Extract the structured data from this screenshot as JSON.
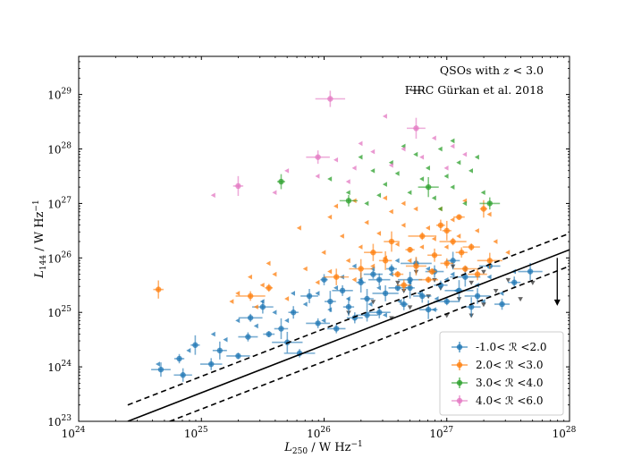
{
  "chart_data": {
    "type": "scatter",
    "title": "",
    "annotation": "QSOs with z < 3.0",
    "xlabel": "L250 / W Hz−1",
    "ylabel": "L144 / W Hz−1",
    "xlim_log10": [
      24,
      28
    ],
    "ylim_log10": [
      23,
      29.7
    ],
    "x_tick_labels": [
      "10^24",
      "10^25",
      "10^26",
      "10^27",
      "10^28"
    ],
    "y_tick_labels": [
      "10^23",
      "10^24",
      "10^25",
      "10^26",
      "10^27",
      "10^28",
      "10^29"
    ],
    "firc_relation": {
      "label": "FIRC Gürkan et al. 2018",
      "line_points_log10": [
        [
          24.4,
          23.0
        ],
        [
          28.0,
          26.15
        ]
      ],
      "offset_dex": 0.3
    },
    "upper_limit_arrow": {
      "x_log10": 27.9,
      "y_from_log10": 26.0,
      "y_to_log10": 25.12
    },
    "series": [
      {
        "name": "-1.0< ℛ <2.0",
        "color": "#1f77b4",
        "detections": [
          [
            24.67,
            23.95
          ],
          [
            24.82,
            24.15
          ],
          [
            24.85,
            23.85
          ],
          [
            24.95,
            24.4
          ],
          [
            25.08,
            24.05
          ],
          [
            25.15,
            24.3
          ],
          [
            25.3,
            24.2
          ],
          [
            25.38,
            24.55
          ],
          [
            25.4,
            24.9
          ],
          [
            25.5,
            25.1
          ],
          [
            25.55,
            24.6
          ],
          [
            25.7,
            24.45
          ],
          [
            25.75,
            25.0
          ],
          [
            25.8,
            24.25
          ],
          [
            25.88,
            25.3
          ],
          [
            25.95,
            24.8
          ],
          [
            26.05,
            25.2
          ],
          [
            26.1,
            24.7
          ],
          [
            26.15,
            25.4
          ],
          [
            26.2,
            25.1
          ],
          [
            26.25,
            24.9
          ],
          [
            26.3,
            25.55
          ],
          [
            26.35,
            25.25
          ],
          [
            26.4,
            25.7
          ],
          [
            26.45,
            25.0
          ],
          [
            26.5,
            25.35
          ],
          [
            26.55,
            25.8
          ],
          [
            26.6,
            25.45
          ],
          [
            26.65,
            25.15
          ],
          [
            26.7,
            25.6
          ],
          [
            26.75,
            25.9
          ],
          [
            26.8,
            25.3
          ],
          [
            26.85,
            25.05
          ],
          [
            26.9,
            25.75
          ],
          [
            26.95,
            25.5
          ],
          [
            27.0,
            25.2
          ],
          [
            27.05,
            25.95
          ],
          [
            27.1,
            25.4
          ],
          [
            27.15,
            25.65
          ],
          [
            27.25,
            25.3
          ],
          [
            27.35,
            25.85
          ],
          [
            27.45,
            25.15
          ],
          [
            27.55,
            25.55
          ],
          [
            27.68,
            25.75
          ],
          [
            25.65,
            24.7
          ],
          [
            26.0,
            25.6
          ],
          [
            26.45,
            25.6
          ],
          [
            26.7,
            25.45
          ],
          [
            27.2,
            25.1
          ],
          [
            26.35,
            24.95
          ]
        ],
        "limits": [
          [
            24.65,
            24.05
          ],
          [
            24.9,
            24.3
          ],
          [
            25.2,
            24.5
          ],
          [
            25.45,
            24.75
          ],
          [
            25.6,
            25.0
          ],
          [
            25.7,
            24.85
          ],
          [
            25.85,
            25.15
          ],
          [
            25.95,
            25.35
          ],
          [
            26.05,
            25.05
          ],
          [
            26.1,
            25.45
          ],
          [
            26.2,
            25.25
          ],
          [
            26.3,
            25.6
          ],
          [
            26.38,
            25.15
          ],
          [
            26.45,
            25.45
          ],
          [
            26.55,
            25.7
          ],
          [
            26.62,
            25.2
          ],
          [
            26.7,
            25.55
          ],
          [
            26.78,
            25.35
          ],
          [
            26.85,
            25.8
          ],
          [
            26.92,
            25.25
          ],
          [
            27.0,
            25.6
          ],
          [
            27.08,
            25.4
          ],
          [
            27.15,
            25.8
          ],
          [
            27.25,
            25.5
          ],
          [
            27.35,
            25.65
          ],
          [
            27.45,
            25.35
          ],
          [
            27.55,
            25.75
          ],
          [
            26.25,
            25.85
          ],
          [
            26.6,
            25.95
          ],
          [
            25.5,
            25.2
          ],
          [
            25.3,
            24.85
          ],
          [
            25.1,
            24.6
          ],
          [
            26.0,
            24.85
          ],
          [
            26.5,
            24.95
          ],
          [
            26.9,
            25.05
          ],
          [
            27.3,
            25.2
          ],
          [
            27.05,
            25.7
          ],
          [
            26.15,
            25.65
          ],
          [
            25.75,
            25.35
          ],
          [
            26.4,
            25.8
          ]
        ],
        "limits_down": [
          [
            26.4,
            25.2
          ],
          [
            26.55,
            24.9
          ],
          [
            26.7,
            25.1
          ],
          [
            26.85,
            25.3
          ],
          [
            27.0,
            24.95
          ],
          [
            27.1,
            25.25
          ],
          [
            27.2,
            24.95
          ],
          [
            27.3,
            25.15
          ],
          [
            27.4,
            25.4
          ],
          [
            27.6,
            25.25
          ],
          [
            26.95,
            25.45
          ],
          [
            26.65,
            25.4
          ],
          [
            27.5,
            25.6
          ],
          [
            26.2,
            25.0
          ],
          [
            27.7,
            25.55
          ]
        ]
      },
      {
        "name": "2.0< ℛ <3.0",
        "color": "#ff7f0e",
        "detections": [
          [
            24.65,
            25.42
          ],
          [
            25.4,
            25.3
          ],
          [
            25.55,
            25.45
          ],
          [
            26.1,
            25.65
          ],
          [
            26.3,
            25.8
          ],
          [
            26.5,
            25.95
          ],
          [
            26.6,
            25.7
          ],
          [
            26.7,
            26.15
          ],
          [
            26.75,
            25.85
          ],
          [
            26.8,
            26.4
          ],
          [
            26.85,
            25.6
          ],
          [
            26.9,
            26.05
          ],
          [
            26.95,
            26.6
          ],
          [
            27.0,
            25.9
          ],
          [
            27.05,
            26.3
          ],
          [
            27.1,
            26.75
          ],
          [
            27.15,
            25.8
          ],
          [
            27.2,
            26.2
          ],
          [
            27.25,
            25.7
          ],
          [
            27.3,
            26.9
          ],
          [
            26.4,
            26.1
          ],
          [
            26.55,
            26.3
          ],
          [
            27.35,
            25.95
          ],
          [
            26.65,
            25.5
          ],
          [
            27.0,
            26.5
          ],
          [
            26.88,
            25.75
          ],
          [
            27.12,
            26.1
          ]
        ],
        "limits": [
          [
            25.3,
            25.35
          ],
          [
            25.45,
            25.1
          ],
          [
            25.5,
            25.5
          ],
          [
            25.6,
            25.7
          ],
          [
            25.7,
            25.25
          ],
          [
            25.85,
            25.8
          ],
          [
            25.95,
            25.55
          ],
          [
            26.0,
            26.1
          ],
          [
            26.05,
            25.75
          ],
          [
            26.15,
            26.4
          ],
          [
            26.2,
            25.95
          ],
          [
            26.25,
            25.6
          ],
          [
            26.3,
            26.2
          ],
          [
            26.35,
            26.65
          ],
          [
            26.4,
            25.85
          ],
          [
            26.45,
            26.45
          ],
          [
            26.5,
            26.0
          ],
          [
            26.55,
            26.85
          ],
          [
            26.6,
            26.25
          ],
          [
            26.65,
            26.6
          ],
          [
            26.7,
            25.95
          ],
          [
            26.75,
            26.9
          ],
          [
            26.8,
            26.2
          ],
          [
            26.85,
            26.55
          ],
          [
            26.9,
            26.35
          ],
          [
            26.95,
            26.9
          ],
          [
            27.0,
            26.2
          ],
          [
            27.05,
            26.7
          ],
          [
            27.1,
            26.4
          ],
          [
            27.15,
            27.05
          ],
          [
            27.25,
            26.5
          ],
          [
            27.35,
            26.8
          ],
          [
            26.1,
            26.95
          ],
          [
            25.8,
            26.55
          ],
          [
            26.05,
            26.75
          ],
          [
            25.55,
            25.9
          ],
          [
            25.4,
            25.65
          ],
          [
            25.25,
            25.2
          ],
          [
            27.4,
            26.3
          ],
          [
            27.5,
            26.1
          ],
          [
            26.25,
            27.05
          ],
          [
            26.5,
            27.1
          ],
          [
            26.65,
            27.0
          ]
        ],
        "limits_down": [
          [
            26.6,
            25.55
          ],
          [
            26.75,
            25.75
          ],
          [
            26.9,
            25.6
          ],
          [
            27.05,
            25.85
          ],
          [
            27.2,
            25.55
          ],
          [
            27.3,
            25.75
          ]
        ]
      },
      {
        "name": "3.0< ℛ <4.0",
        "color": "#2ca02c",
        "detections": [
          [
            25.65,
            27.4
          ],
          [
            26.2,
            27.05
          ],
          [
            26.85,
            27.3
          ],
          [
            27.35,
            27.0
          ]
        ],
        "limits": [
          [
            26.05,
            27.45
          ],
          [
            26.2,
            27.2
          ],
          [
            26.35,
            27.0
          ],
          [
            26.5,
            27.35
          ],
          [
            26.55,
            27.75
          ],
          [
            26.6,
            27.55
          ],
          [
            26.7,
            27.2
          ],
          [
            26.75,
            27.9
          ],
          [
            26.8,
            27.45
          ],
          [
            26.85,
            27.65
          ],
          [
            26.9,
            27.1
          ],
          [
            26.95,
            28.0
          ],
          [
            27.0,
            27.5
          ],
          [
            27.05,
            27.3
          ],
          [
            27.1,
            27.75
          ],
          [
            27.15,
            27.0
          ],
          [
            27.2,
            27.6
          ],
          [
            27.25,
            27.85
          ],
          [
            27.3,
            27.2
          ],
          [
            26.4,
            27.6
          ],
          [
            26.3,
            27.85
          ],
          [
            26.65,
            28.05
          ],
          [
            27.05,
            28.15
          ],
          [
            26.45,
            27.15
          ],
          [
            26.95,
            26.9
          ]
        ]
      },
      {
        "name": "4.0< ℛ <6.0",
        "color": "#e377c2",
        "detections": [
          [
            25.3,
            27.32
          ],
          [
            25.95,
            27.85
          ],
          [
            26.05,
            28.92
          ],
          [
            26.75,
            28.38
          ]
        ],
        "limits": [
          [
            25.1,
            27.15
          ],
          [
            25.6,
            27.2
          ],
          [
            25.7,
            27.6
          ],
          [
            25.95,
            27.5
          ],
          [
            26.1,
            27.8
          ],
          [
            26.2,
            27.4
          ],
          [
            26.3,
            28.1
          ],
          [
            26.4,
            27.95
          ],
          [
            26.55,
            27.7
          ],
          [
            26.65,
            28.0
          ],
          [
            26.8,
            27.85
          ],
          [
            26.9,
            28.2
          ],
          [
            27.0,
            27.65
          ],
          [
            27.05,
            28.05
          ],
          [
            27.15,
            27.9
          ],
          [
            26.5,
            28.6
          ],
          [
            26.25,
            27.65
          ]
        ]
      }
    ]
  },
  "legend": {
    "entries": [
      "-1.0< ℛ <2.0",
      "2.0< ℛ <3.0",
      "3.0< ℛ <4.0",
      "4.0< ℛ <6.0"
    ]
  }
}
